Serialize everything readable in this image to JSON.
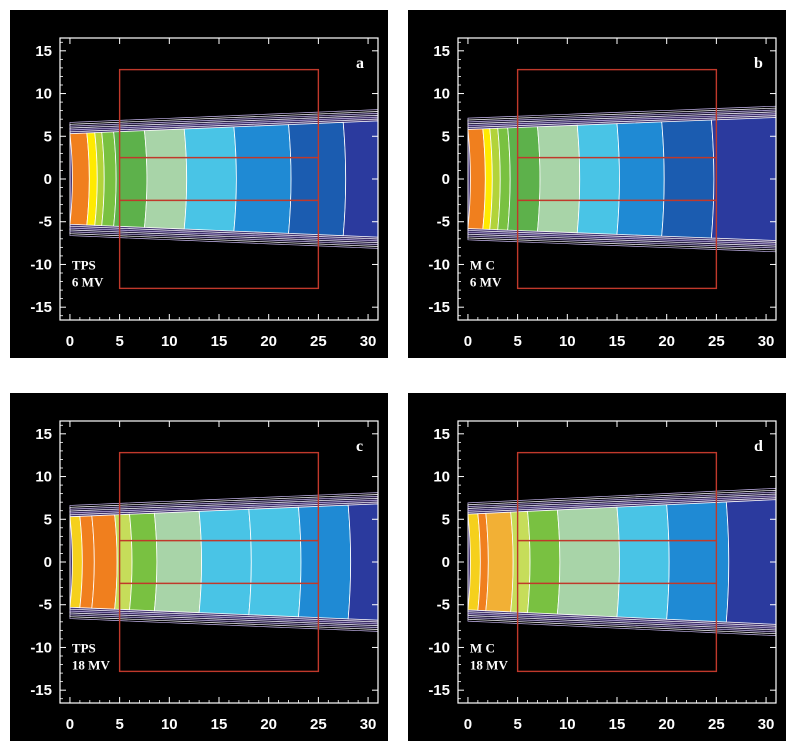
{
  "chart_data": [
    {
      "type": "heatmap",
      "panel_letter": "a",
      "annotation": [
        "TPS",
        "6 MV"
      ],
      "x_ticks": [
        "0",
        "5",
        "10",
        "15",
        "20",
        "25",
        "30"
      ],
      "y_ticks": [
        "15",
        "10",
        "5",
        "0",
        "-5",
        "-10",
        "-15"
      ],
      "xlim": [
        -1,
        31
      ],
      "ylim": [
        -16.5,
        16.5
      ],
      "box_x": [
        5,
        25
      ],
      "box_y": [
        -12.8,
        12.8
      ],
      "inner_y": [
        -2.5,
        2.5
      ],
      "beam_half_width_start": 5.3,
      "beam_half_width_end": 6.8,
      "band_edges": [
        0,
        1.7,
        2.5,
        3.2,
        4.4,
        7.5,
        11.5,
        16.5,
        22,
        27.5,
        31
      ],
      "band_colors": [
        "#f07f1e",
        "#ffea00",
        "#b2d33a",
        "#79c141",
        "#5db14b",
        "#a8d4a8",
        "#49c4e6",
        "#1f8ad4",
        "#1b5cb0",
        "#2b3a9e"
      ]
    },
    {
      "type": "heatmap",
      "panel_letter": "b",
      "annotation": [
        "M C",
        "6 MV"
      ],
      "x_ticks": [
        "0",
        "5",
        "10",
        "15",
        "20",
        "25",
        "30"
      ],
      "y_ticks": [
        "15",
        "10",
        "5",
        "0",
        "-5",
        "-10",
        "-15"
      ],
      "xlim": [
        -1,
        31
      ],
      "ylim": [
        -16.5,
        16.5
      ],
      "box_x": [
        5,
        25
      ],
      "box_y": [
        -12.8,
        12.8
      ],
      "inner_y": [
        -2.5,
        2.5
      ],
      "beam_half_width_start": 5.8,
      "beam_half_width_end": 7.2,
      "band_edges": [
        0,
        1.5,
        2.2,
        3.0,
        4.0,
        7.0,
        11.0,
        15.0,
        19.5,
        24.5,
        31
      ],
      "band_colors": [
        "#f07f1e",
        "#ffea00",
        "#b2d33a",
        "#79c141",
        "#5db14b",
        "#a8d4a8",
        "#49c4e6",
        "#1f8ad4",
        "#1b5cb0",
        "#2b3a9e"
      ]
    },
    {
      "type": "heatmap",
      "panel_letter": "c",
      "annotation": [
        "TPS",
        "18 MV"
      ],
      "x_ticks": [
        "0",
        "5",
        "10",
        "15",
        "20",
        "25",
        "30"
      ],
      "y_ticks": [
        "15",
        "10",
        "5",
        "0",
        "-5",
        "-10",
        "-15"
      ],
      "xlim": [
        -1,
        31
      ],
      "ylim": [
        -16.5,
        16.5
      ],
      "box_x": [
        5,
        25
      ],
      "box_y": [
        -12.8,
        12.8
      ],
      "inner_y": [
        -2.5,
        2.5
      ],
      "beam_half_width_start": 5.3,
      "beam_half_width_end": 6.8,
      "band_edges": [
        0,
        1.0,
        2.2,
        4.5,
        6.0,
        8.5,
        13.0,
        18.0,
        23.0,
        28.0,
        31
      ],
      "band_colors": [
        "#f5d01c",
        "#f07f1e",
        "#f07f1e",
        "#c6dd5a",
        "#79c141",
        "#a8d4a8",
        "#49c4e6",
        "#49c4e6",
        "#1f8ad4",
        "#2b3a9e"
      ]
    },
    {
      "type": "heatmap",
      "panel_letter": "d",
      "annotation": [
        "M C",
        "18 MV"
      ],
      "x_ticks": [
        "0",
        "5",
        "10",
        "15",
        "20",
        "25",
        "30"
      ],
      "y_ticks": [
        "15",
        "10",
        "5",
        "0",
        "-5",
        "-10",
        "-15"
      ],
      "xlim": [
        -1,
        31
      ],
      "ylim": [
        -16.5,
        16.5
      ],
      "box_x": [
        5,
        25
      ],
      "box_y": [
        -12.8,
        12.8
      ],
      "inner_y": [
        -2.5,
        2.5
      ],
      "beam_half_width_start": 5.6,
      "beam_half_width_end": 7.3,
      "band_edges": [
        0,
        1.0,
        1.8,
        4.3,
        6.0,
        9.0,
        15.0,
        20.0,
        26.0,
        31
      ],
      "band_colors": [
        "#f5d01c",
        "#f07f1e",
        "#f2b035",
        "#c6dd5a",
        "#79c141",
        "#a8d4a8",
        "#49c4e6",
        "#1f8ad4",
        "#2b3a9e"
      ]
    }
  ]
}
